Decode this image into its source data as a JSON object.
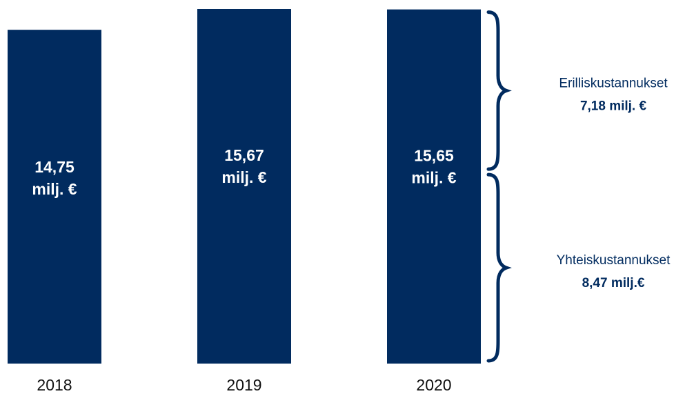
{
  "colors": {
    "bar": "#012b5f",
    "bar_text": "#ffffff",
    "annotation": "#012b5f",
    "tick": "#111111"
  },
  "chart_data": {
    "type": "bar",
    "title": "",
    "xlabel": "",
    "ylabel": "",
    "categories": [
      "2018",
      "2019",
      "2020"
    ],
    "values": [
      14.75,
      15.67,
      15.65
    ],
    "ylim": [
      0,
      15.67
    ],
    "grid": false,
    "legend": "none",
    "data_labels": [
      {
        "line1": "14,75",
        "line2": "milj. €"
      },
      {
        "line1": "15,67",
        "line2": "milj. €"
      },
      {
        "line1": "15,65",
        "line2": "milj. €"
      }
    ],
    "breakdown": {
      "category": "2020",
      "parts": [
        {
          "name": "Yhteiskustannukset",
          "value": 8.47,
          "label": "8,47 milj.€"
        },
        {
          "name": "Erilliskustannukset",
          "value": 7.18,
          "label": "7,18 milj. €"
        }
      ]
    }
  }
}
